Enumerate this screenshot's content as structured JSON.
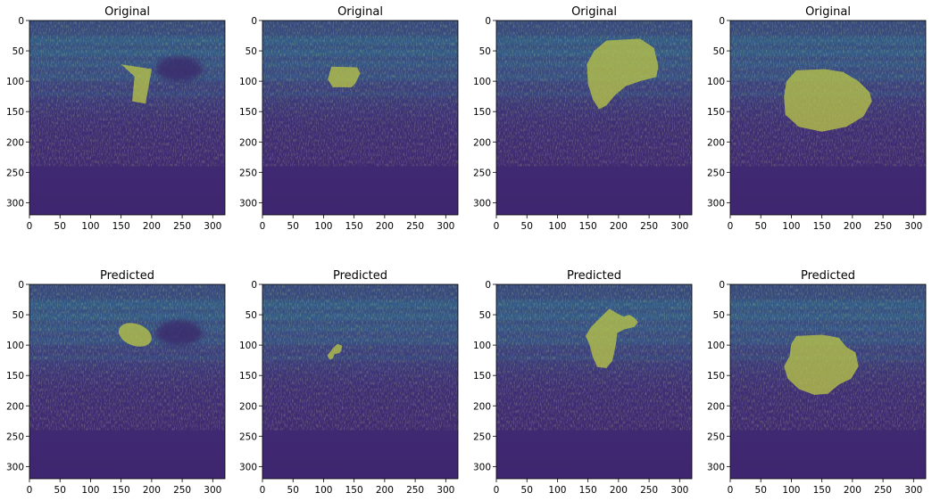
{
  "figure": {
    "rows": [
      {
        "panels": [
          {
            "title": "Original",
            "mask": {
              "type": "polygon",
              "pts": [
                [
                  150,
                  72
                ],
                [
                  200,
                  80
                ],
                [
                  190,
                  137
                ],
                [
                  168,
                  133
                ],
                [
                  172,
                  92
                ]
              ]
            }
          },
          {
            "title": "Original",
            "mask": {
              "type": "polygon",
              "pts": [
                [
                  113,
                  76
                ],
                [
                  155,
                  77
                ],
                [
                  160,
                  87
                ],
                [
                  152,
                  104
                ],
                [
                  146,
                  110
                ],
                [
                  115,
                  110
                ],
                [
                  107,
                  97
                ]
              ]
            }
          },
          {
            "title": "Original",
            "mask": {
              "type": "polygon",
              "pts": [
                [
                  180,
                  33
                ],
                [
                  235,
                  30
                ],
                [
                  258,
                  45
                ],
                [
                  265,
                  75
                ],
                [
                  262,
                  93
                ],
                [
                  235,
                  100
                ],
                [
                  212,
                  108
                ],
                [
                  195,
                  122
                ],
                [
                  180,
                  140
                ],
                [
                  168,
                  146
                ],
                [
                  158,
                  130
                ],
                [
                  150,
                  105
                ],
                [
                  148,
                  72
                ],
                [
                  160,
                  50
                ]
              ]
            }
          },
          {
            "title": "Original",
            "mask": {
              "type": "polygon",
              "pts": [
                [
                  108,
                  82
                ],
                [
                  155,
                  80
                ],
                [
                  185,
                  85
                ],
                [
                  210,
                  100
                ],
                [
                  228,
                  118
                ],
                [
                  232,
                  133
                ],
                [
                  218,
                  158
                ],
                [
                  190,
                  175
                ],
                [
                  150,
                  183
                ],
                [
                  112,
                  175
                ],
                [
                  90,
                  155
                ],
                [
                  88,
                  125
                ],
                [
                  92,
                  100
                ]
              ]
            }
          }
        ]
      },
      {
        "panels": [
          {
            "title": "Predicted",
            "mask": {
              "type": "ellipse",
              "cx": 173,
              "cy": 83,
              "rx": 28,
              "ry": 18,
              "rot": 20
            }
          },
          {
            "title": "Predicted",
            "mask": {
              "type": "polygon",
              "pts": [
                [
                  117,
                  103
                ],
                [
                  123,
                  98
                ],
                [
                  130,
                  101
                ],
                [
                  129,
                  109
                ],
                [
                  126,
                  113
                ],
                [
                  118,
                  115
                ],
                [
                  115,
                  122
                ],
                [
                  110,
                  124
                ],
                [
                  106,
                  117
                ],
                [
                  110,
                  112
                ]
              ]
            }
          },
          {
            "title": "Predicted",
            "mask": {
              "type": "polygon",
              "pts": [
                [
                  172,
                  53
                ],
                [
                  185,
                  40
                ],
                [
                  198,
                  48
                ],
                [
                  208,
                  53
                ],
                [
                  218,
                  50
                ],
                [
                  226,
                  55
                ],
                [
                  232,
                  62
                ],
                [
                  226,
                  70
                ],
                [
                  210,
                  74
                ],
                [
                  198,
                  80
                ],
                [
                  195,
                  102
                ],
                [
                  190,
                  126
                ],
                [
                  180,
                  138
                ],
                [
                  165,
                  136
                ],
                [
                  158,
                  120
                ],
                [
                  152,
                  98
                ],
                [
                  146,
                  85
                ],
                [
                  155,
                  70
                ]
              ]
            }
          },
          {
            "title": "Predicted",
            "mask": {
              "type": "polygon",
              "pts": [
                [
                  108,
                  85
                ],
                [
                  150,
                  83
                ],
                [
                  178,
                  88
                ],
                [
                  190,
                  103
                ],
                [
                  205,
                  112
                ],
                [
                  210,
                  135
                ],
                [
                  198,
                  155
                ],
                [
                  178,
                  165
                ],
                [
                  160,
                  180
                ],
                [
                  138,
                  182
                ],
                [
                  112,
                  172
                ],
                [
                  94,
                  155
                ],
                [
                  88,
                  135
                ],
                [
                  97,
                  118
                ],
                [
                  100,
                  98
                ]
              ]
            }
          }
        ]
      }
    ],
    "axes": {
      "xlim": [
        0,
        320
      ],
      "ylim": [
        0,
        320
      ],
      "xticks": [
        0,
        50,
        100,
        150,
        200,
        250,
        300
      ],
      "yticks": [
        0,
        50,
        100,
        150,
        200,
        250,
        300
      ]
    },
    "colors": {
      "background": "#42216e",
      "tissue": "#2f6b8e",
      "speckle": "#b9d63a",
      "mask": "#b7c348",
      "text": "#000000"
    }
  }
}
